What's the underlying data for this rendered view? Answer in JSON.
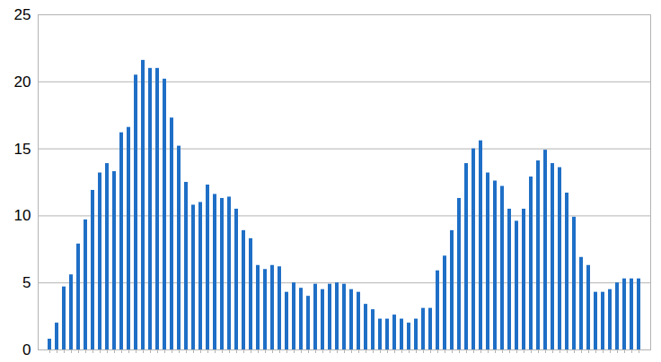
{
  "chart_data": {
    "type": "bar",
    "categories": [
      null,
      null,
      null,
      null,
      null,
      null,
      null,
      null,
      null,
      null,
      null,
      null,
      null,
      null,
      null,
      null,
      null,
      null,
      null,
      null,
      null,
      null,
      null,
      null,
      null,
      null,
      null,
      null,
      null,
      null,
      null,
      null,
      null,
      null,
      null,
      null,
      null,
      null,
      null,
      null,
      null,
      null,
      null,
      null,
      null,
      null,
      null,
      null,
      null,
      null,
      null,
      null,
      null,
      null,
      null,
      null,
      null,
      null,
      null,
      null,
      null,
      null,
      null,
      null,
      null,
      null,
      null,
      null,
      null,
      null,
      null,
      null,
      null,
      null,
      null,
      null,
      null,
      null,
      null,
      null,
      null,
      null,
      null
    ],
    "values": [
      0.8,
      2.0,
      4.7,
      5.6,
      7.9,
      9.7,
      11.9,
      13.2,
      13.9,
      13.3,
      16.2,
      16.6,
      20.5,
      21.6,
      21.0,
      21.0,
      20.2,
      17.3,
      15.2,
      12.5,
      10.8,
      11.0,
      12.3,
      11.6,
      11.3,
      11.4,
      10.5,
      8.9,
      8.3,
      6.3,
      6.0,
      6.3,
      6.2,
      4.3,
      5.0,
      4.6,
      4.0,
      4.9,
      4.5,
      4.9,
      5.0,
      4.9,
      4.5,
      4.3,
      3.4,
      3.0,
      2.3,
      2.3,
      2.6,
      2.3,
      2.0,
      2.3,
      3.1,
      3.1,
      5.9,
      7.0,
      8.9,
      11.3,
      13.9,
      15.0,
      15.6,
      13.2,
      12.6,
      12.2,
      10.5,
      9.6,
      10.5,
      12.9,
      14.1,
      14.9,
      13.9,
      13.6,
      11.7,
      9.9,
      6.9,
      6.3,
      4.3,
      4.3,
      4.5,
      5.0,
      5.3,
      5.3,
      5.3
    ],
    "color": "#1f6fc6",
    "ylim": [
      0,
      25
    ],
    "yticks": [
      0,
      5,
      10,
      15,
      20,
      25
    ],
    "grid": true,
    "tick_labels": "y"
  }
}
